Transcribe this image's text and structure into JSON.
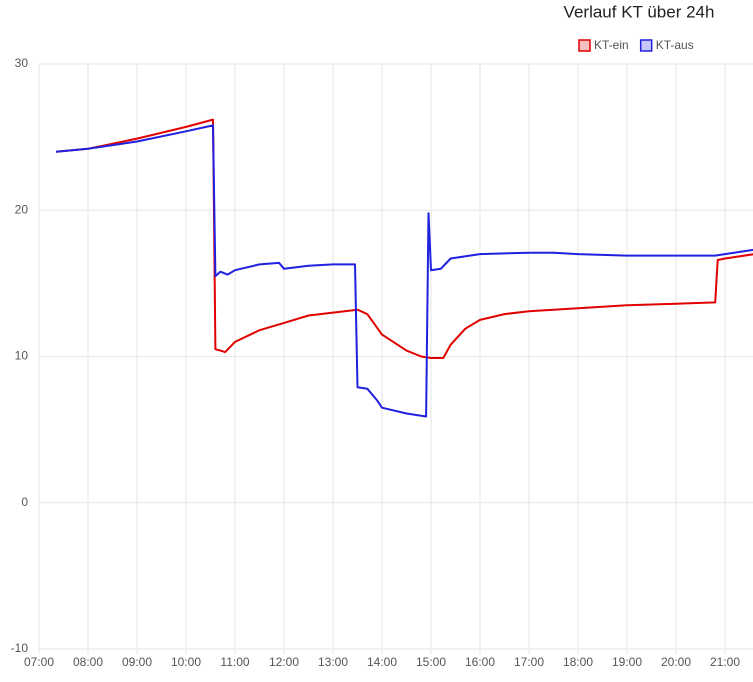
{
  "chart_data": {
    "type": "line",
    "title": "Verlauf KT über 24h",
    "xlim": [
      7,
      21.6
    ],
    "ylim": [
      -10,
      30
    ],
    "xticks": [
      {
        "value": 7,
        "label": "07:00"
      },
      {
        "value": 8,
        "label": "08:00"
      },
      {
        "value": 9,
        "label": "09:00"
      },
      {
        "value": 10,
        "label": "10:00"
      },
      {
        "value": 11,
        "label": "11:00"
      },
      {
        "value": 12,
        "label": "12:00"
      },
      {
        "value": 13,
        "label": "13:00"
      },
      {
        "value": 14,
        "label": "14:00"
      },
      {
        "value": 15,
        "label": "15:00"
      },
      {
        "value": 16,
        "label": "16:00"
      },
      {
        "value": 17,
        "label": "17:00"
      },
      {
        "value": 18,
        "label": "18:00"
      },
      {
        "value": 19,
        "label": "19:00"
      },
      {
        "value": 20,
        "label": "20:00"
      },
      {
        "value": 21,
        "label": "21:00"
      }
    ],
    "yticks": [
      -10,
      0,
      10,
      20,
      30
    ],
    "grid": true,
    "series": [
      {
        "name": "KT-ein",
        "color": "#e00000",
        "x": [
          7.35,
          8.0,
          9.0,
          10.0,
          10.55,
          10.6,
          10.7,
          10.8,
          11.0,
          11.5,
          12.0,
          12.5,
          13.0,
          13.5,
          13.7,
          14.0,
          14.5,
          14.8,
          15.0,
          15.25,
          15.4,
          15.7,
          16.0,
          16.5,
          17.0,
          17.5,
          18.0,
          19.0,
          20.0,
          20.8,
          20.85,
          21.0,
          21.6
        ],
        "values": [
          24.0,
          24.2,
          24.9,
          25.7,
          26.2,
          10.5,
          10.4,
          10.3,
          11.0,
          11.8,
          12.3,
          12.8,
          13.0,
          13.2,
          12.9,
          11.5,
          10.4,
          10.0,
          9.9,
          9.9,
          10.8,
          11.9,
          12.5,
          12.9,
          13.1,
          13.2,
          13.3,
          13.5,
          13.6,
          13.7,
          16.6,
          16.7,
          17.0
        ]
      },
      {
        "name": "KT-aus",
        "color": "#2020e0",
        "x": [
          7.35,
          8.0,
          9.0,
          10.0,
          10.55,
          10.6,
          10.7,
          10.85,
          11.0,
          11.5,
          11.9,
          12.0,
          12.5,
          13.0,
          13.45,
          13.5,
          13.7,
          13.9,
          14.0,
          14.5,
          14.9,
          14.95,
          15.0,
          15.2,
          15.4,
          16.0,
          17.0,
          17.5,
          18.0,
          19.0,
          20.0,
          20.8,
          21.0,
          21.6
        ],
        "values": [
          24.0,
          24.2,
          24.7,
          25.4,
          25.8,
          15.5,
          15.8,
          15.6,
          15.9,
          16.3,
          16.4,
          16.0,
          16.2,
          16.3,
          16.3,
          7.9,
          7.8,
          7.0,
          6.5,
          6.1,
          5.9,
          19.8,
          15.9,
          16.0,
          16.7,
          17.0,
          17.1,
          17.1,
          17.0,
          16.9,
          16.9,
          16.9,
          17.0,
          17.3
        ]
      }
    ]
  }
}
